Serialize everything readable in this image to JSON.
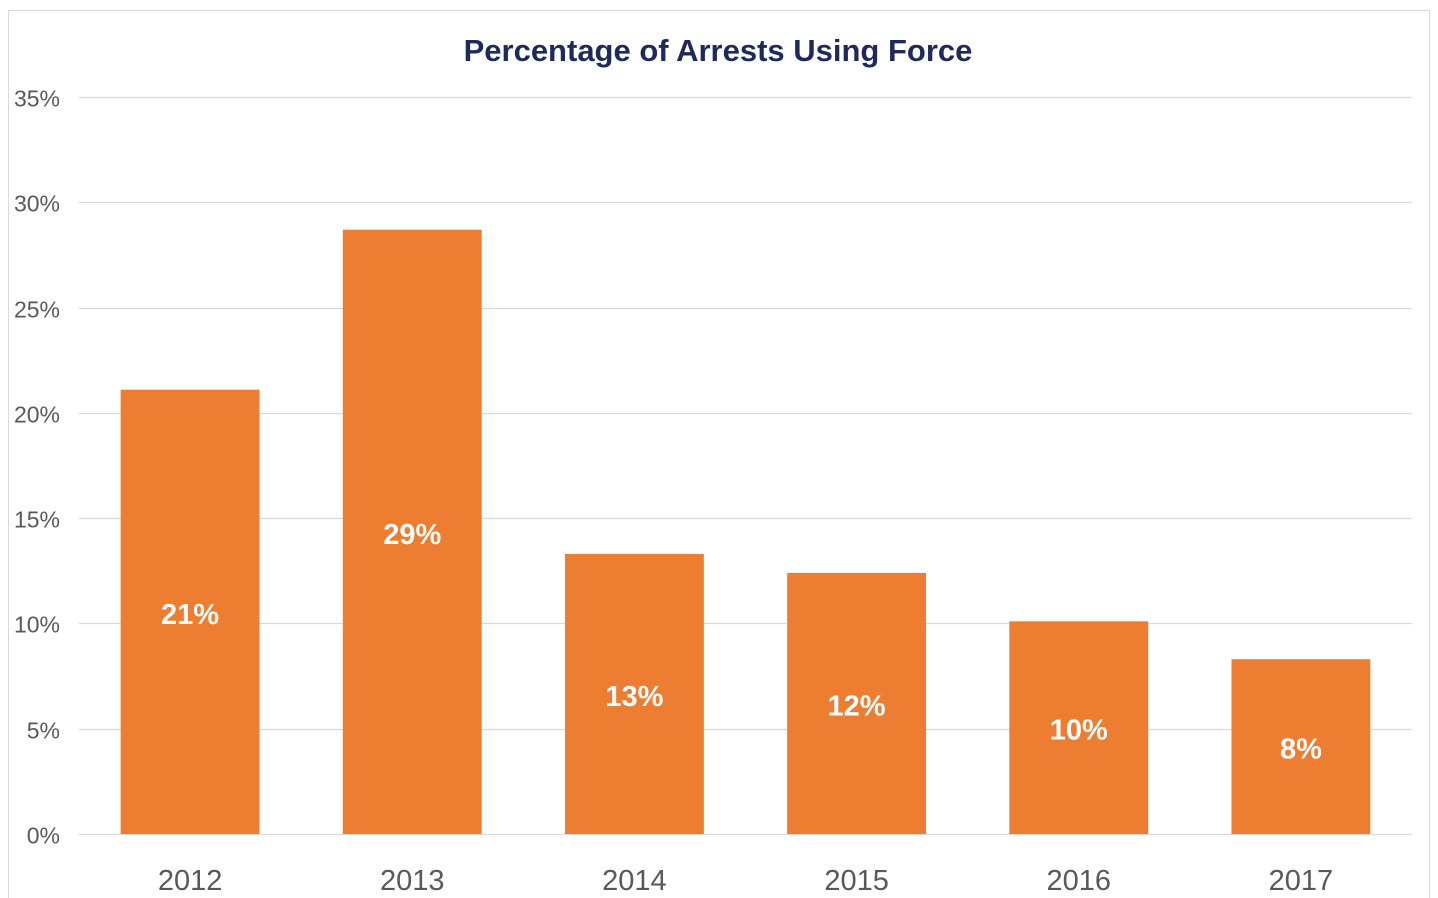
{
  "chart_data": {
    "type": "bar",
    "title": "Percentage of Arrests Using Force",
    "categories": [
      "2012",
      "2013",
      "2014",
      "2015",
      "2016",
      "2017"
    ],
    "values": [
      21.1,
      28.7,
      13.3,
      12.4,
      10.1,
      8.3
    ],
    "data_labels": [
      "21%",
      "29%",
      "13%",
      "12%",
      "10%",
      "8%"
    ],
    "xlabel": "",
    "ylabel": "",
    "ylim": [
      0,
      35
    ],
    "yticks": [
      0,
      5,
      10,
      15,
      20,
      25,
      30,
      35
    ],
    "ytick_labels": [
      "0%",
      "5%",
      "10%",
      "15%",
      "20%",
      "25%",
      "30%",
      "35%"
    ],
    "grid": true,
    "legend": "none",
    "colors": {
      "bar": "#ED7D31",
      "title": "#1F2A5C",
      "grid": "#D9D9D9",
      "tick_text": "#595959",
      "data_label": "#FFFFFF",
      "frame": "#D9D9D9"
    }
  }
}
